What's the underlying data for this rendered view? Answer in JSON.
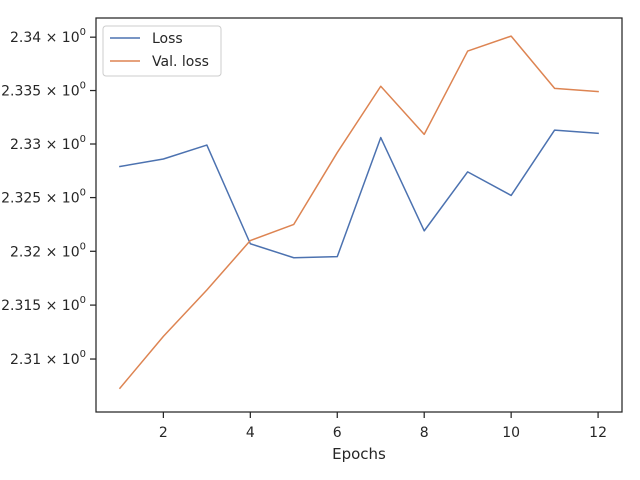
{
  "chart_data": {
    "type": "line",
    "title": "",
    "xlabel": "Epochs",
    "ylabel": "",
    "x": [
      1,
      2,
      3,
      4,
      5,
      6,
      7,
      8,
      9,
      10,
      11,
      12
    ],
    "series": [
      {
        "name": "Loss",
        "color": "#4c72b0",
        "values": [
          2.3279,
          2.3286,
          2.3299,
          2.3207,
          2.3194,
          2.3195,
          2.3306,
          2.3219,
          2.3274,
          2.3252,
          2.3313,
          2.331
        ]
      },
      {
        "name": "Val. loss",
        "color": "#dd8452",
        "values": [
          2.3073,
          2.3121,
          2.3164,
          2.321,
          2.3225,
          2.3292,
          2.3354,
          2.3309,
          2.3387,
          2.3401,
          2.3352,
          2.3349
        ]
      }
    ],
    "xlim": [
      0.45,
      12.55
    ],
    "ylim": [
      2.3051,
      2.3418
    ],
    "xticks": [
      2,
      4,
      6,
      8,
      10,
      12
    ],
    "yticks": [
      2.31,
      2.315,
      2.32,
      2.325,
      2.33,
      2.335,
      2.34
    ],
    "ytick_labels": [
      "2.31",
      "2.315",
      "2.32",
      "2.325",
      "2.33",
      "2.335",
      "2.34"
    ],
    "ytick_suffix": "0",
    "y_scale": "log",
    "grid": false,
    "legend_position": "top-left"
  }
}
